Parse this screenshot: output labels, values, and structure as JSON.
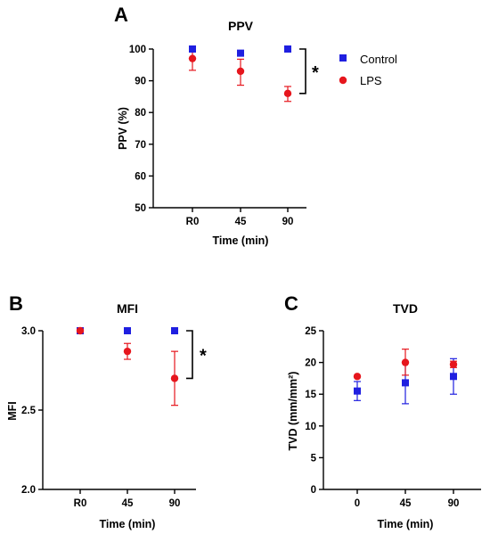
{
  "colors": {
    "control": "#1f1fe0",
    "lps": "#e6161d",
    "axis": "#000000"
  },
  "legend": {
    "position": "right of panel A",
    "entries": [
      {
        "series": "control",
        "label": "Control",
        "marker": "square"
      },
      {
        "series": "lps",
        "label": "LPS",
        "marker": "circle"
      }
    ]
  },
  "chart_data": [
    {
      "panel": "A",
      "type": "scatter",
      "title": "PPV",
      "xlabel": "Time (min)",
      "ylabel": "PPV (%)",
      "categories": [
        "R0",
        "45",
        "90"
      ],
      "ylim": [
        50,
        100
      ],
      "yticks": [
        50,
        60,
        70,
        80,
        90,
        100
      ],
      "grid": false,
      "series": [
        {
          "name": "Control",
          "key": "control",
          "marker": "square",
          "values": [
            100,
            98.7,
            100
          ],
          "err_low": [
            100,
            98.7,
            100
          ],
          "err_high": [
            100,
            98.7,
            100
          ]
        },
        {
          "name": "LPS",
          "key": "lps",
          "marker": "circle",
          "values": [
            97,
            93,
            86
          ],
          "err_low": [
            93.3,
            88.6,
            83.5
          ],
          "err_high": [
            99.2,
            96.8,
            88.2
          ]
        }
      ],
      "significance": {
        "label": "*",
        "between": [
          "Control",
          "LPS"
        ],
        "at": "90"
      }
    },
    {
      "panel": "B",
      "type": "scatter",
      "title": "MFI",
      "xlabel": "Time (min)",
      "ylabel": "MFI",
      "categories": [
        "R0",
        "45",
        "90"
      ],
      "ylim": [
        2.0,
        3.0
      ],
      "yticks": [
        "2.0",
        "2.5",
        "3.0"
      ],
      "grid": false,
      "series": [
        {
          "name": "Control",
          "key": "control",
          "marker": "square",
          "values": [
            3.0,
            3.0,
            3.0
          ],
          "err_low": [
            3.0,
            3.0,
            3.0
          ],
          "err_high": [
            3.0,
            3.0,
            3.0
          ]
        },
        {
          "name": "LPS",
          "key": "lps",
          "marker": "circle",
          "values": [
            3.0,
            2.87,
            2.7
          ],
          "err_low": [
            3.0,
            2.82,
            2.53
          ],
          "err_high": [
            3.0,
            2.92,
            2.87
          ]
        }
      ],
      "significance": {
        "label": "*",
        "between": [
          "Control",
          "LPS"
        ],
        "at": "90"
      }
    },
    {
      "panel": "C",
      "type": "scatter",
      "title": "TVD",
      "xlabel": "Time (min)",
      "ylabel": "TVD (mm/mm²)",
      "categories": [
        "0",
        "45",
        "90"
      ],
      "ylim": [
        0,
        25
      ],
      "yticks": [
        0,
        5,
        10,
        15,
        20,
        25
      ],
      "grid": false,
      "series": [
        {
          "name": "Control",
          "key": "control",
          "marker": "square",
          "values": [
            15.5,
            16.8,
            17.8
          ],
          "err_low": [
            14.0,
            13.5,
            15.0
          ],
          "err_high": [
            17.0,
            20.1,
            20.6
          ]
        },
        {
          "name": "LPS",
          "key": "lps",
          "marker": "circle",
          "values": [
            17.8,
            20.0,
            19.7
          ],
          "err_low": [
            17.8,
            18.0,
            19.2
          ],
          "err_high": [
            17.8,
            22.1,
            20.2
          ]
        }
      ]
    }
  ]
}
